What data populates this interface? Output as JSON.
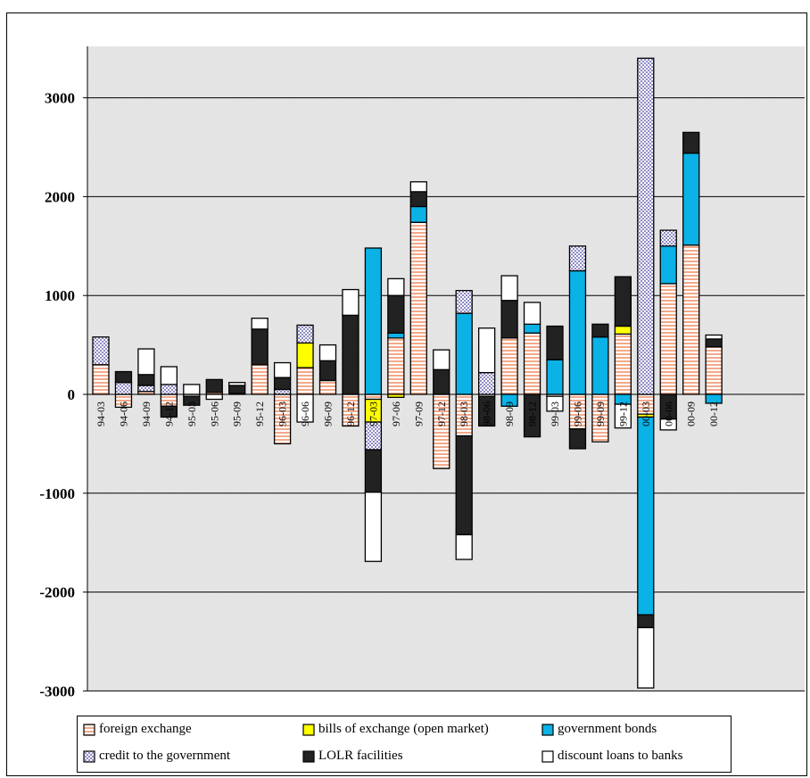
{
  "chart_data": {
    "type": "bar",
    "stacked": true,
    "title": "",
    "xlabel": "",
    "ylabel": "",
    "ylim": [
      -3000,
      3500
    ],
    "yticks": [
      3000,
      2000,
      1000,
      0,
      -1000,
      -2000,
      -3000
    ],
    "ytick_labels": [
      "3000",
      "2000",
      "1000",
      "0",
      "-1000",
      "-2000",
      "-3000"
    ],
    "grid": true,
    "legend_position": "bottom",
    "categories": [
      "94-03",
      "94-06",
      "94-09",
      "94-12",
      "95-03",
      "95-06",
      "95-09",
      "95-12",
      "96-03",
      "96-06",
      "96-09",
      "96-12",
      "97-03",
      "97-06",
      "97-09",
      "97-12",
      "98-03",
      "98-06",
      "98-09",
      "98-12",
      "99-03",
      "99-06",
      "99-09",
      "99-12",
      "00-03",
      "00-06",
      "00-09",
      "00-12"
    ],
    "category_labels": [
      "94-03",
      "94-06",
      "94-09",
      "94-12",
      "95-03",
      "95-06",
      "95-09",
      "95-12",
      "96-03",
      "96-06",
      "96-09",
      "96-12",
      "97-03",
      "97-06",
      "97-09",
      "97-12",
      "98-03",
      "98-06",
      "98-09",
      "98-12",
      "99-03",
      "99-06",
      "99-09",
      "99-12",
      "00-03",
      "00-06",
      "00-09",
      "00-12"
    ],
    "series": [
      {
        "name": "foreign exchange",
        "color": "#f2a98a",
        "pattern": "hstripes",
        "values": [
          300,
          -130,
          30,
          -120,
          -20,
          20,
          10,
          300,
          -500,
          270,
          140,
          -320,
          -50,
          570,
          1740,
          -750,
          -420,
          -20,
          570,
          620,
          -20,
          -350,
          -480,
          610,
          -200,
          1120,
          1510,
          480
        ]
      },
      {
        "name": "bills of exchange (open market)",
        "color": "#ffff00",
        "pattern": "solid",
        "values": [
          0,
          0,
          0,
          0,
          0,
          0,
          0,
          0,
          0,
          250,
          0,
          0,
          -230,
          -30,
          0,
          0,
          0,
          0,
          0,
          0,
          0,
          0,
          0,
          80,
          -30,
          0,
          0,
          0
        ]
      },
      {
        "name": "government bonds",
        "color": "#0ab2e6",
        "pattern": "solid",
        "values": [
          0,
          0,
          0,
          0,
          0,
          0,
          0,
          0,
          0,
          0,
          0,
          0,
          1480,
          50,
          160,
          0,
          820,
          0,
          -120,
          90,
          350,
          1250,
          580,
          -100,
          -2000,
          380,
          930,
          -90
        ]
      },
      {
        "name": "credit to the government",
        "color": "#b8b6d6",
        "pattern": "checker",
        "values": [
          280,
          120,
          60,
          100,
          0,
          0,
          0,
          0,
          50,
          180,
          0,
          0,
          -280,
          0,
          0,
          0,
          230,
          220,
          0,
          0,
          0,
          250,
          0,
          0,
          3400,
          160,
          0,
          0
        ]
      },
      {
        "name": "LOLR facilities",
        "color": "#222222",
        "pattern": "solid",
        "values": [
          0,
          110,
          110,
          -110,
          -90,
          130,
          80,
          360,
          120,
          0,
          200,
          800,
          -430,
          380,
          150,
          250,
          -1000,
          -300,
          380,
          -430,
          340,
          -200,
          130,
          500,
          -130,
          -250,
          210,
          80
        ]
      },
      {
        "name": "discount loans to banks",
        "color": "#ffffff",
        "pattern": "solid",
        "values": [
          0,
          0,
          260,
          180,
          100,
          -50,
          30,
          110,
          150,
          -280,
          160,
          260,
          -700,
          170,
          100,
          200,
          -250,
          450,
          250,
          220,
          -150,
          0,
          0,
          -240,
          -610,
          -110,
          0,
          40
        ]
      }
    ]
  }
}
